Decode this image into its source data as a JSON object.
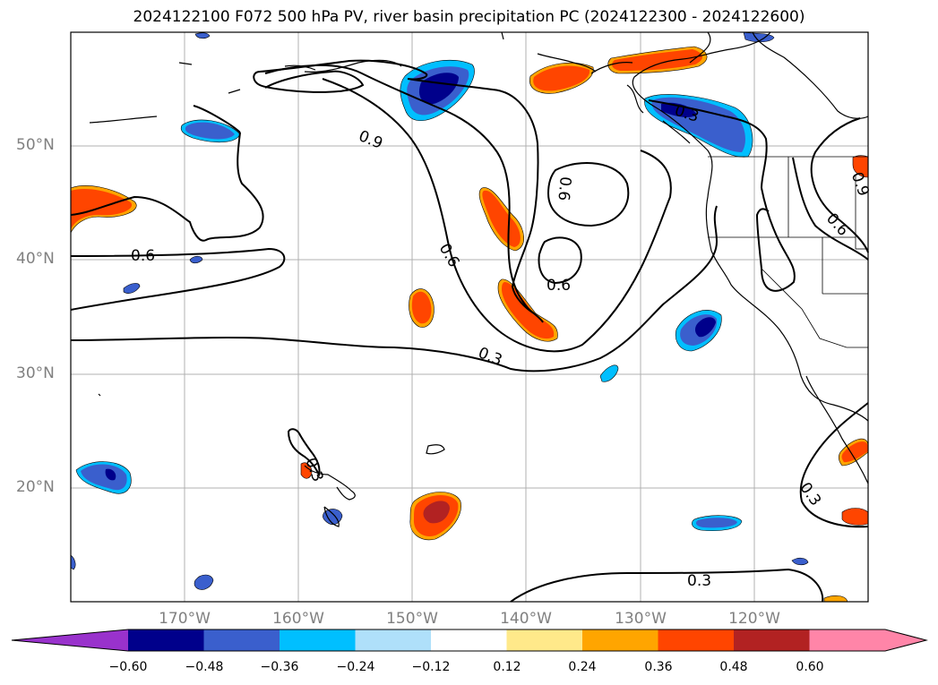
{
  "map": {
    "title": "2024122100 F072 500 hPa PV, river basin precipitation PC (2024122300 - 2024122600)",
    "extent": {
      "lon_min": -180,
      "lon_max": -110,
      "lat_min": 10,
      "lat_max": 60
    },
    "lat_labels": [
      "50°N",
      "40°N",
      "30°N",
      "20°N"
    ],
    "lon_labels": [
      "170°W",
      "160°W",
      "150°W",
      "140°W",
      "130°W",
      "120°W"
    ],
    "contour_labels": [
      "0.9",
      "0.6",
      "0.6",
      "0.6",
      "0.3",
      "0.3",
      "0.3",
      "0.3",
      "0.9",
      "0.6",
      "0.3",
      "0.6"
    ],
    "colorbar": {
      "ticks": [
        "−0.60",
        "−0.48",
        "−0.36",
        "−0.24",
        "−0.12",
        "0.12",
        "0.24",
        "0.36",
        "0.48",
        "0.60"
      ],
      "colors": [
        "#9932cc",
        "#00008b",
        "#3a5fcd",
        "#00bfff",
        "#afe0fa",
        "#ffffff",
        "#ffe98a",
        "#ffa500",
        "#ff4500",
        "#b22222",
        "#ff85a8",
        "#ff85a8"
      ],
      "extend": "both"
    }
  }
}
